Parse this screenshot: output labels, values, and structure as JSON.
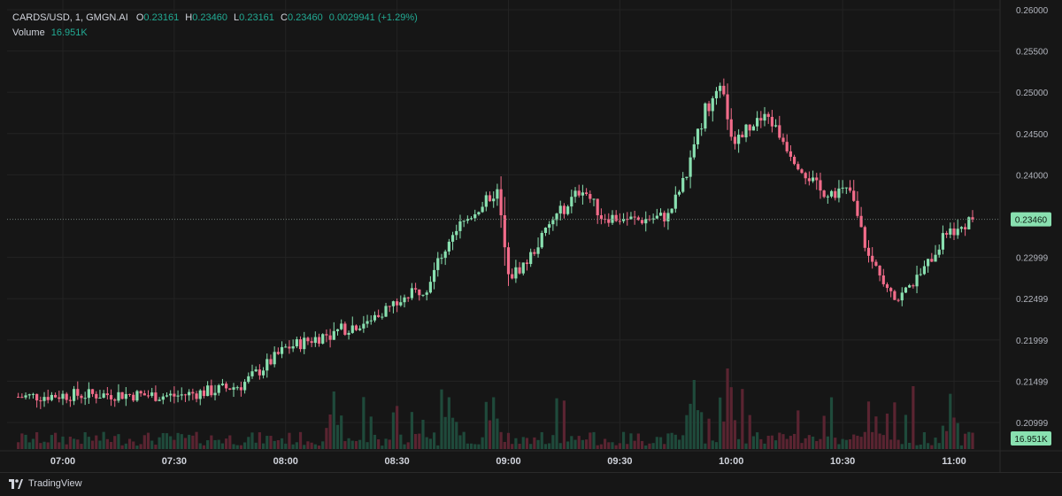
{
  "legend": {
    "symbol": "CARDS/USD, 1, GMGN.AI",
    "o_label": "O",
    "o_value": "0.23161",
    "h_label": "H",
    "h_value": "0.23460",
    "l_label": "L",
    "l_value": "0.23161",
    "c_label": "C",
    "c_value": "0.23460",
    "change": "0.0029941 (+1.29%)",
    "volume_label": "Volume",
    "volume_value": "16.951K"
  },
  "brand": {
    "name": "TradingView",
    "icon": "tradingview-logo-icon"
  },
  "colors": {
    "up": "#22ab94",
    "down": "#f23645",
    "up_body": "#89e0b0",
    "down_body": "#f26c8a",
    "bg": "#161616",
    "grid": "#232323"
  },
  "chart_data": {
    "type": "candlestick",
    "symbol": "CARDS/USD",
    "interval": "1",
    "x_tick_labels": [
      "07:00",
      "07:30",
      "08:00",
      "08:30",
      "09:00",
      "09:30",
      "10:00",
      "10:30",
      "11:00"
    ],
    "y_tick_labels": [
      "0.26000",
      "0.25500",
      "0.25000",
      "0.24500",
      "0.24000",
      "0.22999",
      "0.22499",
      "0.21999",
      "0.21499",
      "0.20999"
    ],
    "ylim": [
      0.2045,
      0.2604
    ],
    "last_price": "0.23460",
    "last_volume": "16.951K",
    "price_path": [
      [
        "06:48",
        0.2131
      ],
      [
        "07:00",
        0.2133
      ],
      [
        "07:15",
        0.2134
      ],
      [
        "07:30",
        0.2132
      ],
      [
        "07:40",
        0.2138
      ],
      [
        "07:48",
        0.2145
      ],
      [
        "07:55",
        0.217
      ],
      [
        "08:00",
        0.219
      ],
      [
        "08:10",
        0.2205
      ],
      [
        "08:20",
        0.222
      ],
      [
        "08:30",
        0.2245
      ],
      [
        "08:38",
        0.2265
      ],
      [
        "08:45",
        0.233
      ],
      [
        "08:52",
        0.236
      ],
      [
        "08:57",
        0.238
      ],
      [
        "09:00",
        0.2275
      ],
      [
        "09:05",
        0.2295
      ],
      [
        "09:12",
        0.2345
      ],
      [
        "09:20",
        0.2385
      ],
      [
        "09:25",
        0.235
      ],
      [
        "09:35",
        0.2345
      ],
      [
        "09:43",
        0.235
      ],
      [
        "09:48",
        0.24
      ],
      [
        "09:53",
        0.248
      ],
      [
        "09:58",
        0.2505
      ],
      [
        "10:00",
        0.244
      ],
      [
        "10:05",
        0.246
      ],
      [
        "10:10",
        0.247
      ],
      [
        "10:17",
        0.242
      ],
      [
        "10:24",
        0.238
      ],
      [
        "10:32",
        0.238
      ],
      [
        "10:37",
        0.23
      ],
      [
        "10:45",
        0.225
      ],
      [
        "10:52",
        0.2285
      ],
      [
        "10:58",
        0.233
      ],
      [
        "11:05",
        0.2346
      ]
    ],
    "volume_peaks": [
      [
        "08:13",
        0.5
      ],
      [
        "08:44",
        0.45
      ],
      [
        "08:56",
        0.45
      ],
      [
        "09:50",
        0.6
      ],
      [
        "09:59",
        0.7
      ],
      [
        "10:59",
        0.48
      ]
    ]
  }
}
